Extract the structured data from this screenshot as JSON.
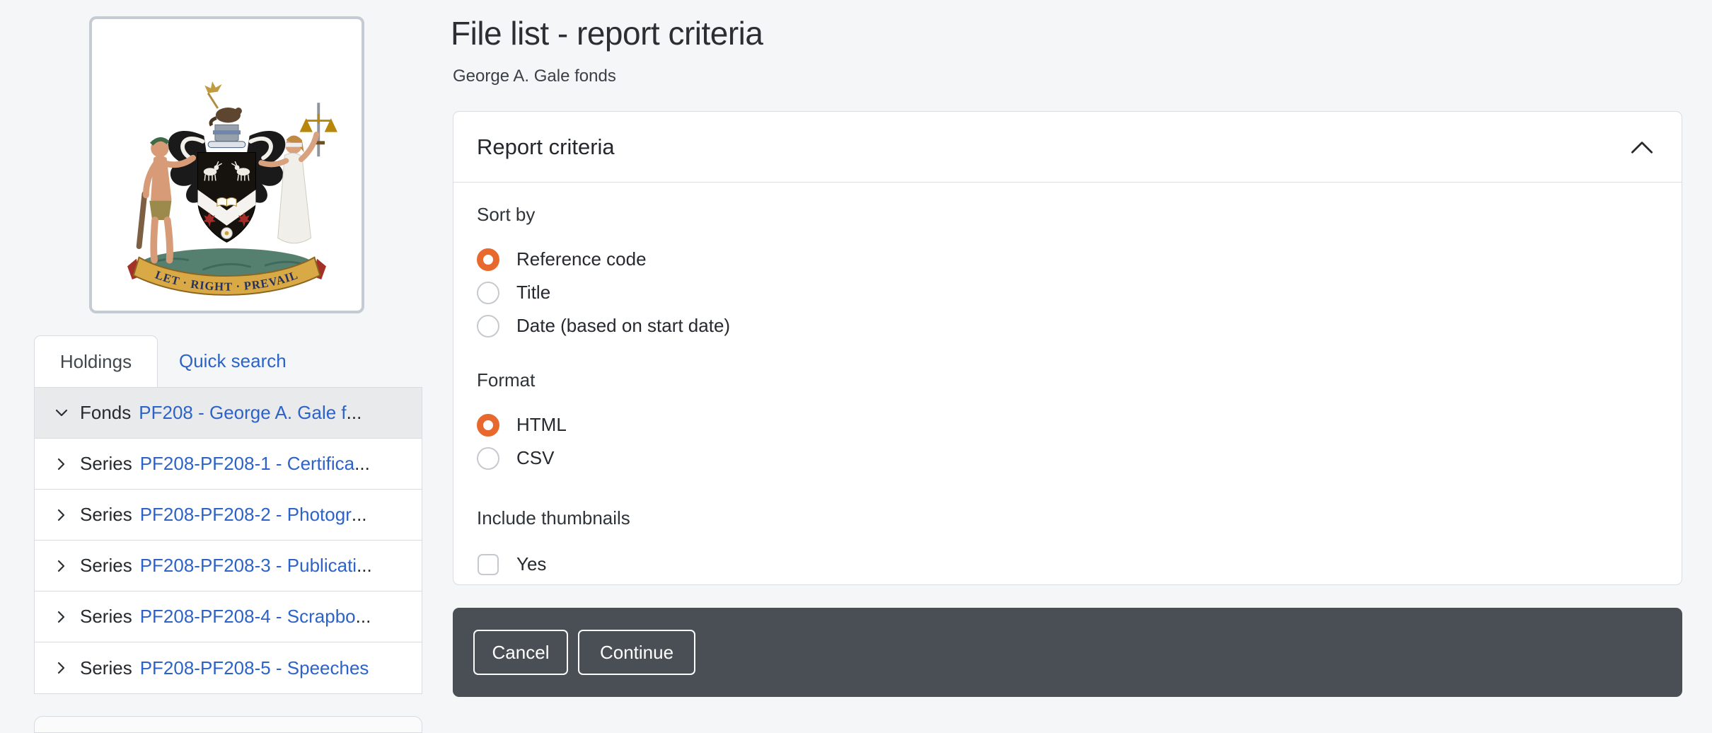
{
  "header": {
    "title": "File list - report criteria",
    "subtitle": "George A. Gale fonds"
  },
  "sidebar": {
    "motto": "LET · RIGHT · PREVAIL",
    "tabs": [
      {
        "label": "Holdings",
        "active": true
      },
      {
        "label": "Quick search",
        "active": false
      }
    ],
    "tree": [
      {
        "level": "Fonds",
        "link": "PF208 - George A. Gale f",
        "truncated": true,
        "expanded": true,
        "selected": true
      },
      {
        "level": "Series",
        "link": "PF208-PF208-1 - Certifica",
        "truncated": true,
        "expanded": false,
        "selected": false
      },
      {
        "level": "Series",
        "link": "PF208-PF208-2 - Photogr",
        "truncated": true,
        "expanded": false,
        "selected": false
      },
      {
        "level": "Series",
        "link": "PF208-PF208-3 - Publicati",
        "truncated": true,
        "expanded": false,
        "selected": false
      },
      {
        "level": "Series",
        "link": "PF208-PF208-4 - Scrapbo",
        "truncated": true,
        "expanded": false,
        "selected": false
      },
      {
        "level": "Series",
        "link": "PF208-PF208-5 - Speeches",
        "truncated": false,
        "expanded": false,
        "selected": false
      }
    ]
  },
  "panel": {
    "title": "Report criteria",
    "sort_by": {
      "label": "Sort by",
      "options": [
        {
          "label": "Reference code",
          "selected": true
        },
        {
          "label": "Title",
          "selected": false
        },
        {
          "label": "Date (based on start date)",
          "selected": false
        }
      ]
    },
    "format": {
      "label": "Format",
      "options": [
        {
          "label": "HTML",
          "selected": true
        },
        {
          "label": "CSV",
          "selected": false
        }
      ]
    },
    "thumbnails": {
      "label": "Include thumbnails",
      "checkbox_label": "Yes",
      "checked": false
    }
  },
  "footer": {
    "cancel_label": "Cancel",
    "continue_label": "Continue"
  },
  "colors": {
    "accent_orange": "#e8692d",
    "link_blue": "#2d63c8",
    "footer_bg": "#4a4f55",
    "selected_row": "#e9eaec"
  }
}
